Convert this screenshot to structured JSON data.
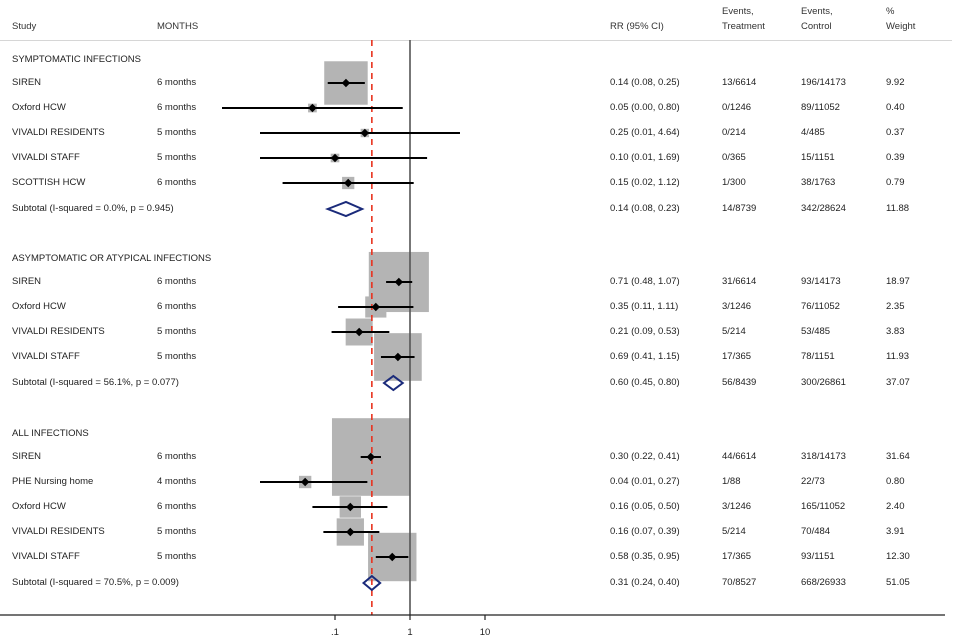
{
  "chart_data": {
    "type": "forest",
    "title": "",
    "xlabel": "",
    "x_scale": "log",
    "x_ticks": [
      0.1,
      1,
      10
    ],
    "x_tick_labels": [
      ".1",
      "1",
      "10"
    ],
    "x_range": [
      0.0025,
      40
    ],
    "null_line": 1,
    "overall_line": 0.31,
    "columns": {
      "study": "Study",
      "months": "MONTHS",
      "rr": "RR (95% CI)",
      "events_treatment": [
        "Events,",
        "Treatment"
      ],
      "events_control": [
        "Events,",
        "Control"
      ],
      "weight": [
        "%",
        "Weight"
      ]
    },
    "sections": [
      {
        "title": "SYMPTOMATIC INFECTIONS",
        "studies": [
          {
            "study": "SIREN",
            "months": "6 months",
            "rr": 0.14,
            "lo": 0.08,
            "hi": 0.25,
            "rr_text": "0.14 (0.08, 0.25)",
            "events_treatment": "13/6614",
            "events_control": "196/14173",
            "weight": "9.92",
            "w": 9.92
          },
          {
            "study": "Oxford HCW",
            "months": "6 months",
            "rr": 0.05,
            "lo": 0.0,
            "hi": 0.8,
            "rr_text": "0.05 (0.00, 0.80)",
            "events_treatment": "0/1246",
            "events_control": "89/11052",
            "weight": "0.40",
            "w": 0.4
          },
          {
            "study": "VIVALDI RESIDENTS",
            "months": "5 months",
            "rr": 0.25,
            "lo": 0.01,
            "hi": 4.64,
            "rr_text": "0.25 (0.01, 4.64)",
            "events_treatment": "0/214",
            "events_control": "4/485",
            "weight": "0.37",
            "w": 0.37
          },
          {
            "study": "VIVALDI STAFF",
            "months": "5 months",
            "rr": 0.1,
            "lo": 0.01,
            "hi": 1.69,
            "rr_text": "0.10 (0.01, 1.69)",
            "events_treatment": "0/365",
            "events_control": "15/1151",
            "weight": "0.39",
            "w": 0.39
          },
          {
            "study": "SCOTTISH HCW",
            "months": "6 months",
            "rr": 0.15,
            "lo": 0.02,
            "hi": 1.12,
            "rr_text": "0.15 (0.02, 1.12)",
            "events_treatment": "1/300",
            "events_control": "38/1763",
            "weight": "0.79",
            "w": 0.79
          }
        ],
        "subtotal": {
          "label": "Subtotal  (I-squared = 0.0%, p = 0.945)",
          "rr": 0.14,
          "lo": 0.08,
          "hi": 0.23,
          "rr_text": "0.14 (0.08, 0.23)",
          "events_treatment": "14/8739",
          "events_control": "342/28624",
          "weight": "11.88"
        }
      },
      {
        "title": "ASYMPTOMATIC OR ATYPICAL INFECTIONS",
        "studies": [
          {
            "study": "SIREN",
            "months": "6 months",
            "rr": 0.71,
            "lo": 0.48,
            "hi": 1.07,
            "rr_text": "0.71 (0.48, 1.07)",
            "events_treatment": "31/6614",
            "events_control": "93/14173",
            "weight": "18.97",
            "w": 18.97
          },
          {
            "study": "Oxford HCW",
            "months": "6 months",
            "rr": 0.35,
            "lo": 0.11,
            "hi": 1.11,
            "rr_text": "0.35 (0.11, 1.11)",
            "events_treatment": "3/1246",
            "events_control": "76/11052",
            "weight": "2.35",
            "w": 2.35
          },
          {
            "study": "VIVALDI RESIDENTS",
            "months": "5 months",
            "rr": 0.21,
            "lo": 0.09,
            "hi": 0.53,
            "rr_text": "0.21 (0.09, 0.53)",
            "events_treatment": "5/214",
            "events_control": "53/485",
            "weight": "3.83",
            "w": 3.83
          },
          {
            "study": "VIVALDI STAFF",
            "months": "5 months",
            "rr": 0.69,
            "lo": 0.41,
            "hi": 1.15,
            "rr_text": "0.69 (0.41, 1.15)",
            "events_treatment": "17/365",
            "events_control": "78/1151",
            "weight": "11.93",
            "w": 11.93
          }
        ],
        "subtotal": {
          "label": "Subtotal  (I-squared = 56.1%, p = 0.077)",
          "rr": 0.6,
          "lo": 0.45,
          "hi": 0.8,
          "rr_text": "0.60 (0.45, 0.80)",
          "events_treatment": "56/8439",
          "events_control": "300/26861",
          "weight": "37.07"
        }
      },
      {
        "title": "ALL INFECTIONS",
        "studies": [
          {
            "study": "SIREN",
            "months": "6 months",
            "rr": 0.3,
            "lo": 0.22,
            "hi": 0.41,
            "rr_text": "0.30 (0.22, 0.41)",
            "events_treatment": "44/6614",
            "events_control": "318/14173",
            "weight": "31.64",
            "w": 31.64
          },
          {
            "study": "PHE Nursing home",
            "months": "4 months",
            "rr": 0.04,
            "lo": 0.01,
            "hi": 0.27,
            "rr_text": "0.04 (0.01, 0.27)",
            "events_treatment": "1/88",
            "events_control": "22/73",
            "weight": "0.80",
            "w": 0.8
          },
          {
            "study": "Oxford HCW",
            "months": "6 months",
            "rr": 0.16,
            "lo": 0.05,
            "hi": 0.5,
            "rr_text": "0.16 (0.05, 0.50)",
            "events_treatment": "3/1246",
            "events_control": "165/11052",
            "weight": "2.40",
            "w": 2.4
          },
          {
            "study": "VIVALDI RESIDENTS",
            "months": "5 months",
            "rr": 0.16,
            "lo": 0.07,
            "hi": 0.39,
            "rr_text": "0.16 (0.07, 0.39)",
            "events_treatment": "5/214",
            "events_control": "70/484",
            "weight": "3.91",
            "w": 3.91
          },
          {
            "study": "VIVALDI STAFF",
            "months": "5 months",
            "rr": 0.58,
            "lo": 0.35,
            "hi": 0.95,
            "rr_text": "0.58 (0.35, 0.95)",
            "events_treatment": "17/365",
            "events_control": "93/1151",
            "weight": "12.30",
            "w": 12.3
          }
        ],
        "subtotal": {
          "label": "Subtotal  (I-squared = 70.5%, p = 0.009)",
          "rr": 0.31,
          "lo": 0.24,
          "hi": 0.4,
          "rr_text": "0.31 (0.24, 0.40)",
          "events_treatment": "70/8527",
          "events_control": "668/26933",
          "weight": "51.05"
        }
      }
    ],
    "colors": {
      "point": "#000000",
      "ci_line": "#000000",
      "weight_box": "#b4b4b4",
      "diamond": "#1a2a7a",
      "null_line": "#555555",
      "overall_line": "#e8321e"
    }
  }
}
